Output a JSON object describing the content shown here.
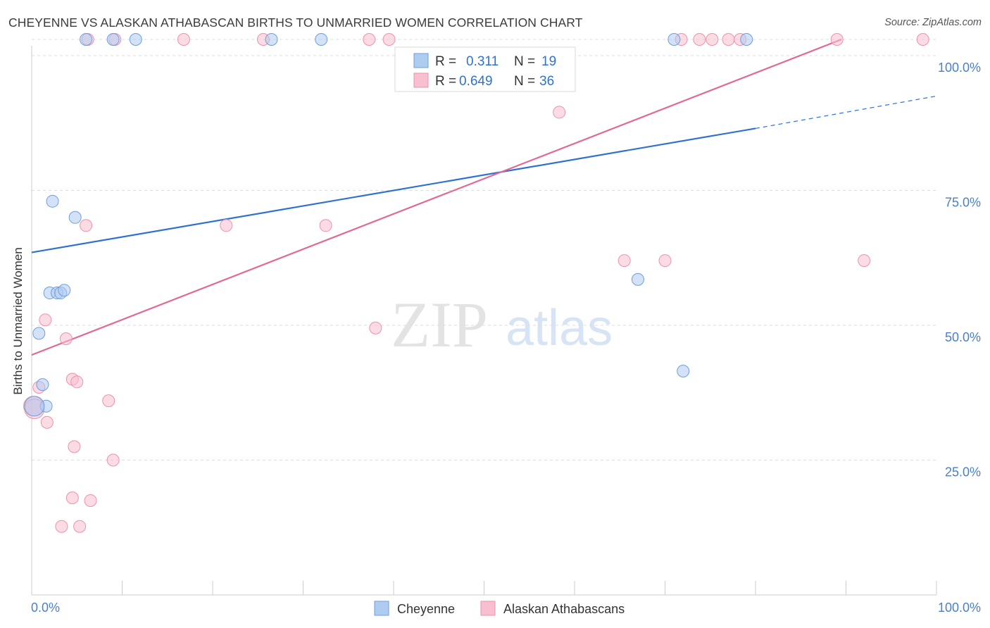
{
  "header": {
    "title": "CHEYENNE VS ALASKAN ATHABASCAN BIRTHS TO UNMARRIED WOMEN CORRELATION CHART",
    "source": "Source: ZipAtlas.com"
  },
  "watermark": {
    "zip": "ZIP",
    "atlas": "atlas"
  },
  "colors": {
    "cheyenne_fill": "#aecbf0",
    "cheyenne_stroke": "#6f9fdc",
    "cheyenne_line": "#2f72cc",
    "athabascan_fill": "#f7bfd0",
    "athabascan_stroke": "#ea93ae",
    "athabascan_line": "#e06a95",
    "tick_text": "#4a7fc9",
    "grid": "#dddddd"
  },
  "legend": {
    "r_label": "R =",
    "n_label": "N =",
    "rows": [
      {
        "r": "0.311",
        "n": "19"
      },
      {
        "r": "0.649",
        "n": "36"
      }
    ]
  },
  "chart_data": {
    "type": "scatter",
    "title": "CHEYENNE VS ALASKAN ATHABASCAN BIRTHS TO UNMARRIED WOMEN CORRELATION CHART",
    "xlabel": "",
    "ylabel": "Births to Unmarried Women",
    "xlim": [
      0,
      100
    ],
    "ylim": [
      0,
      105
    ],
    "x_tick_labels": [
      "0.0%",
      "100.0%"
    ],
    "y_ticks": [
      25,
      50,
      75,
      100
    ],
    "y_tick_labels": [
      "25.0%",
      "50.0%",
      "75.0%",
      "100.0%"
    ],
    "grid": "horizontal dashed",
    "legend_position": "top-center",
    "series": [
      {
        "name": "Cheyenne",
        "r": 0.311,
        "n": 19,
        "points": [
          [
            6.0,
            103.0
          ],
          [
            9.0,
            103.0
          ],
          [
            11.5,
            103.0
          ],
          [
            26.5,
            103.0
          ],
          [
            32.0,
            103.0
          ],
          [
            71.0,
            103.0
          ],
          [
            79.0,
            103.0
          ],
          [
            2.3,
            73.0
          ],
          [
            4.8,
            70.0
          ],
          [
            2.0,
            56.0
          ],
          [
            2.8,
            56.0
          ],
          [
            3.2,
            56.0
          ],
          [
            3.6,
            56.5
          ],
          [
            0.8,
            48.5
          ],
          [
            1.2,
            39.0
          ],
          [
            1.6,
            35.0
          ],
          [
            67.0,
            58.5
          ],
          [
            72.0,
            41.5
          ],
          [
            0.3,
            35.0
          ]
        ],
        "trend": {
          "x0": 0,
          "y0": 63.5,
          "x1": 80,
          "y1": 86.5,
          "dashed_to_x": 100,
          "dashed_to_y": 92.5
        }
      },
      {
        "name": "Alaskan Athabascans",
        "r": 0.649,
        "n": 36,
        "points": [
          [
            6.2,
            103.0
          ],
          [
            9.2,
            103.0
          ],
          [
            16.8,
            103.0
          ],
          [
            25.6,
            103.0
          ],
          [
            37.3,
            103.0
          ],
          [
            39.5,
            103.0
          ],
          [
            71.8,
            103.0
          ],
          [
            73.8,
            103.0
          ],
          [
            75.2,
            103.0
          ],
          [
            77.0,
            103.0
          ],
          [
            78.3,
            103.0
          ],
          [
            89.0,
            103.0
          ],
          [
            98.5,
            103.0
          ],
          [
            58.3,
            89.5
          ],
          [
            6.0,
            68.5
          ],
          [
            21.5,
            68.5
          ],
          [
            32.5,
            68.5
          ],
          [
            65.5,
            62.0
          ],
          [
            70.0,
            62.0
          ],
          [
            92.0,
            62.0
          ],
          [
            1.5,
            51.0
          ],
          [
            38.0,
            49.5
          ],
          [
            3.8,
            47.5
          ],
          [
            0.8,
            38.5
          ],
          [
            4.5,
            40.0
          ],
          [
            5.0,
            39.5
          ],
          [
            8.5,
            36.0
          ],
          [
            0.2,
            35.0
          ],
          [
            1.7,
            32.0
          ],
          [
            4.7,
            27.5
          ],
          [
            9.0,
            25.0
          ],
          [
            4.5,
            18.0
          ],
          [
            6.5,
            17.5
          ],
          [
            3.3,
            12.7
          ],
          [
            5.3,
            12.7
          ],
          [
            0.3,
            34.5
          ]
        ],
        "trend": {
          "x0": 0,
          "y0": 44.5,
          "x1": 89.5,
          "y1": 103.0
        }
      }
    ]
  }
}
